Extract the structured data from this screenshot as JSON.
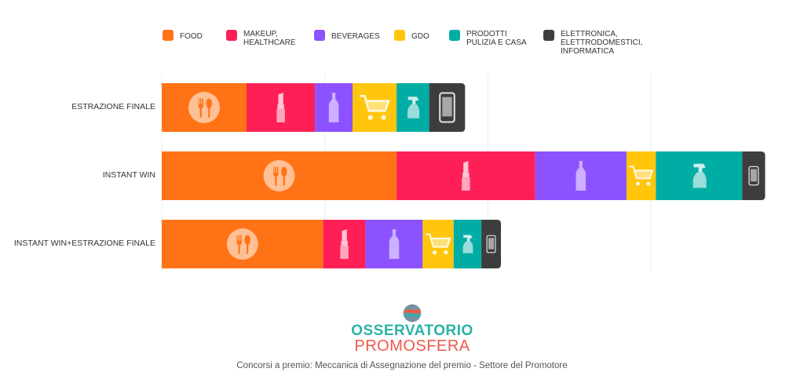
{
  "chart_data": {
    "type": "bar",
    "orientation": "horizontal",
    "stacked": true,
    "categories": [
      "ESTRAZIONE FINALE",
      "INSTANT WIN",
      "INSTANT WIN+ESTRAZIONE FINALE"
    ],
    "series": [
      {
        "name": "FOOD",
        "color": "#ff7316",
        "icon": "food-icon",
        "values": [
          5.2,
          14.4,
          9.9
        ]
      },
      {
        "name": "MAKEUP, HEALTHCARE",
        "color": "#ff1f57",
        "icon": "lipstick-icon",
        "values": [
          4.2,
          8.5,
          2.6
        ]
      },
      {
        "name": "BEVERAGES",
        "color": "#8c52ff",
        "icon": "bottle-icon",
        "values": [
          2.3,
          5.6,
          3.5
        ]
      },
      {
        "name": "GDO",
        "color": "#ffc60b",
        "icon": "cart-icon",
        "values": [
          2.7,
          1.8,
          1.9
        ]
      },
      {
        "name": "PRODOTTI PULIZIA E CASA",
        "color": "#00ada5",
        "icon": "spray-icon",
        "values": [
          2.0,
          5.3,
          1.7
        ]
      },
      {
        "name": "ELETTRONICA, ELETTRODOMESTICI, INFORMATICA",
        "color": "#3d3d3d",
        "icon": "phone-icon",
        "values": [
          2.2,
          1.4,
          1.2
        ]
      }
    ],
    "xlim": [
      0,
      40
    ],
    "grid": true,
    "legend": "top",
    "xlabel": "",
    "ylabel": ""
  },
  "legend_lines": [
    [
      "FOOD"
    ],
    [
      "MAKEUP,",
      "HEALTHCARE"
    ],
    [
      "BEVERAGES"
    ],
    [
      "GDO"
    ],
    [
      "PRODOTTI",
      "PULIZIA E CASA"
    ],
    [
      "ELETTRONICA,",
      "ELETTRODOMESTICI,",
      "INFORMATICA"
    ]
  ],
  "logo": {
    "line1": "OSSERVATORIO",
    "line2": "PROMOSFERA"
  },
  "caption": "Concorsi a premio: Meccanica di Assegnazione del premio - Settore del Promotore"
}
